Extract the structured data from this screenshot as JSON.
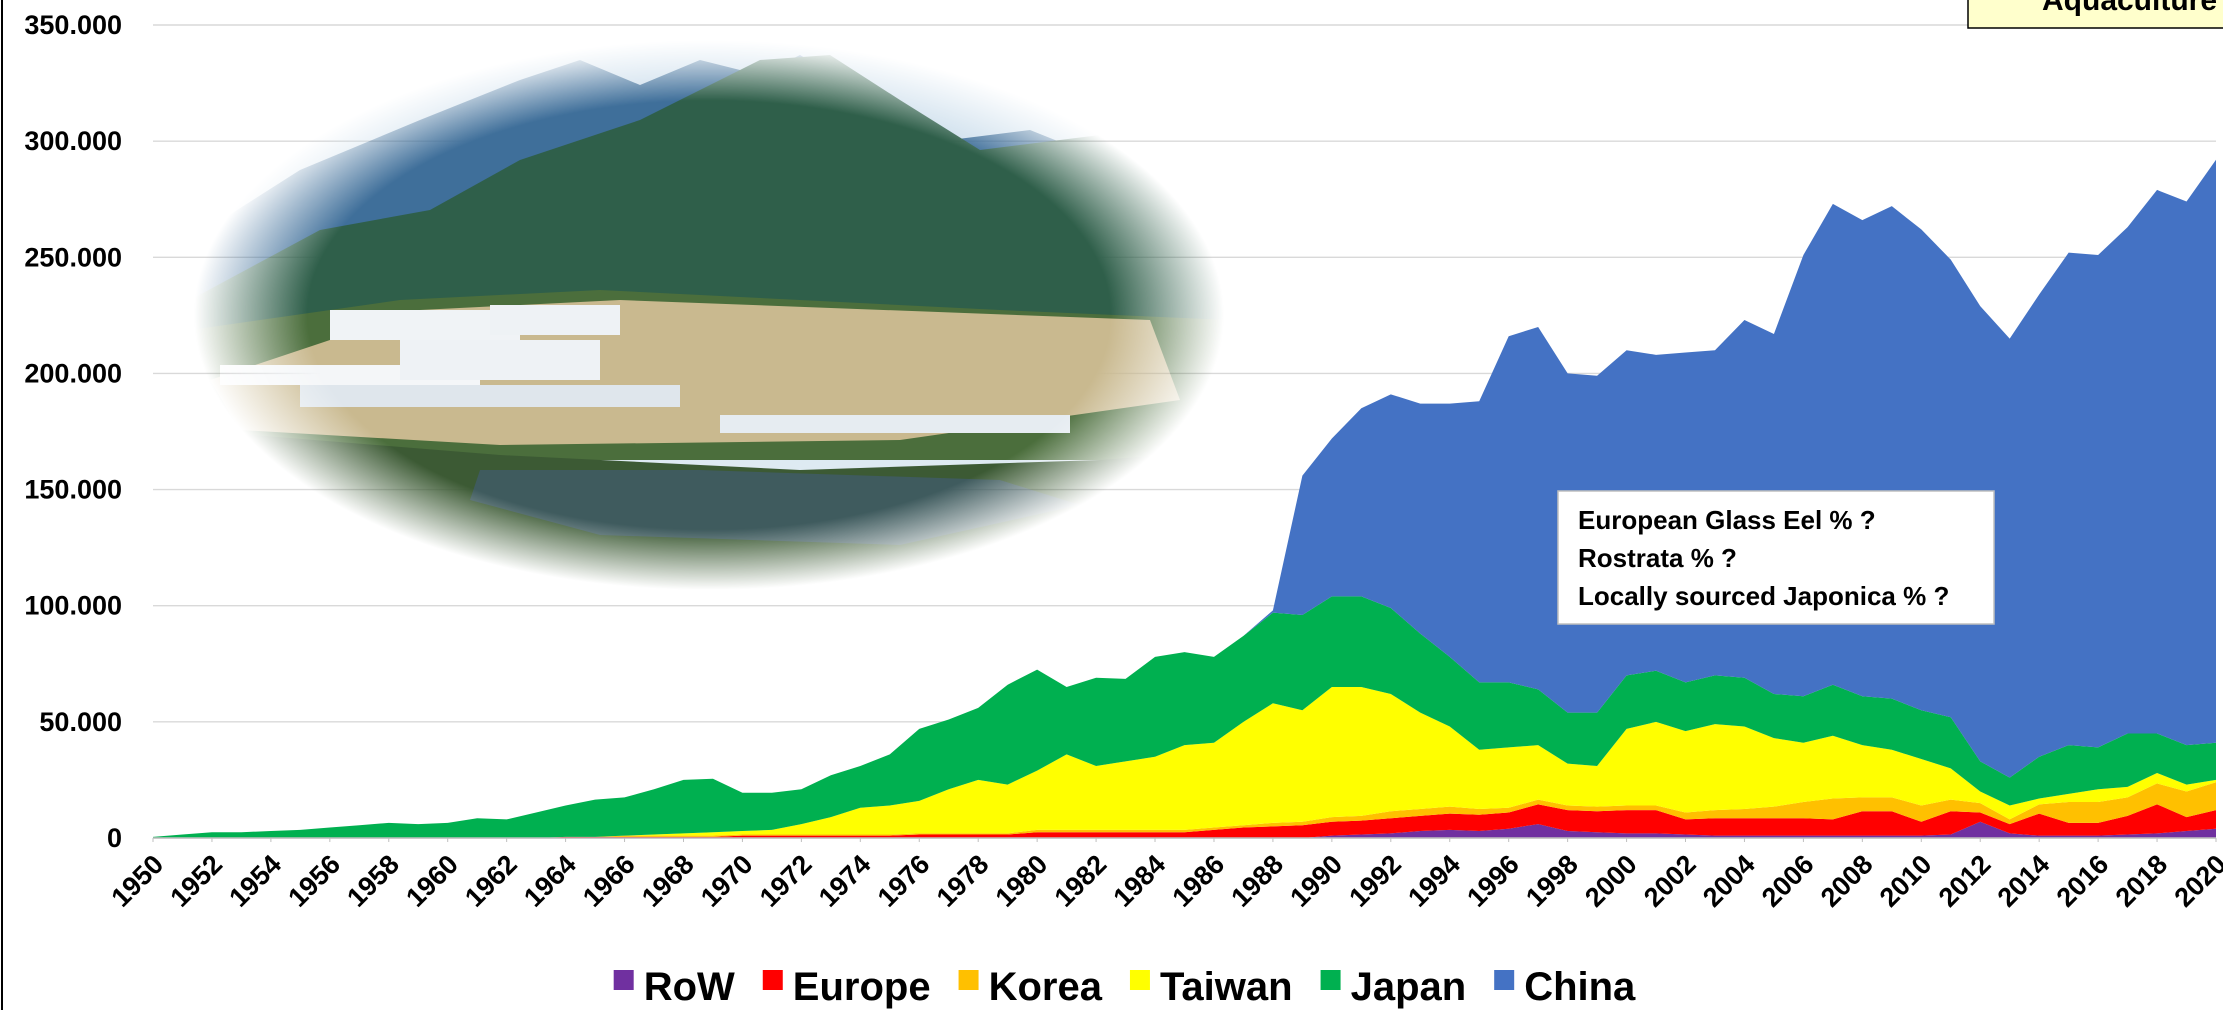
{
  "chart_data": {
    "type": "stacked-area",
    "title": "Aquaculture",
    "annotations": [
      "European Glass Eel % ?",
      "Rostrata % ?",
      "Locally sourced Japonica % ?"
    ],
    "x": [
      1950,
      1951,
      1952,
      1953,
      1954,
      1955,
      1956,
      1957,
      1958,
      1959,
      1960,
      1961,
      1962,
      1963,
      1964,
      1965,
      1966,
      1967,
      1968,
      1969,
      1970,
      1971,
      1972,
      1973,
      1974,
      1975,
      1976,
      1977,
      1978,
      1979,
      1980,
      1981,
      1982,
      1983,
      1984,
      1985,
      1986,
      1987,
      1988,
      1989,
      1990,
      1991,
      1992,
      1993,
      1994,
      1995,
      1996,
      1997,
      1998,
      1999,
      2000,
      2001,
      2002,
      2003,
      2004,
      2005,
      2006,
      2007,
      2008,
      2009,
      2010,
      2011,
      2012,
      2013,
      2014,
      2015,
      2016,
      2017,
      2018,
      2019,
      2020
    ],
    "xlim": [
      1950,
      2020
    ],
    "xticks": [
      1950,
      1952,
      1954,
      1956,
      1958,
      1960,
      1962,
      1964,
      1966,
      1968,
      1970,
      1972,
      1974,
      1976,
      1978,
      1980,
      1982,
      1984,
      1986,
      1988,
      1990,
      1992,
      1994,
      1996,
      1998,
      2000,
      2002,
      2004,
      2006,
      2008,
      2010,
      2012,
      2014,
      2016,
      2018,
      2020
    ],
    "ylim": [
      0,
      350000
    ],
    "yticks": [
      0,
      {
        "value": 50000,
        "label": "50.000"
      },
      {
        "value": 100000,
        "label": "100.000"
      },
      {
        "value": 150000,
        "label": "150.000"
      },
      {
        "value": 200000,
        "label": "200.000"
      },
      {
        "value": 250000,
        "label": "250.000"
      },
      {
        "value": 300000,
        "label": "300.000"
      },
      {
        "value": 350000,
        "label": "350.000"
      }
    ],
    "grid": true,
    "legend": "bottom",
    "series": [
      {
        "name": "RoW",
        "color": "#7030a0",
        "values": [
          0,
          0,
          0,
          0,
          0,
          0,
          0,
          0,
          0,
          0,
          0,
          0,
          0,
          0,
          0,
          0,
          0,
          0,
          0,
          0,
          0,
          0,
          0,
          0,
          0,
          0,
          0,
          0,
          0,
          0,
          0,
          0,
          0,
          0,
          0,
          0,
          0,
          0,
          0,
          0,
          1000,
          1500,
          2000,
          3000,
          3500,
          3000,
          4000,
          6000,
          3000,
          2500,
          2000,
          2000,
          1500,
          1000,
          1000,
          1000,
          1000,
          1000,
          1000,
          1000,
          1000,
          1500,
          7000,
          2000,
          1000,
          1000,
          1000,
          1500,
          2000,
          3000,
          4000
        ]
      },
      {
        "name": "Europe",
        "color": "#ff0000",
        "values": [
          0,
          0,
          0,
          0,
          0,
          0,
          0,
          0,
          0,
          0,
          0,
          0,
          0,
          0,
          500,
          500,
          500,
          500,
          500,
          500,
          1000,
          1000,
          1000,
          1000,
          1000,
          1000,
          1500,
          1500,
          1500,
          1500,
          2500,
          2500,
          2500,
          2500,
          2500,
          2500,
          3500,
          4500,
          5000,
          5500,
          6000,
          6000,
          6500,
          6500,
          7000,
          7000,
          7000,
          8500,
          9000,
          9000,
          10000,
          10000,
          6500,
          7500,
          7500,
          7500,
          7500,
          7000,
          10500,
          10500,
          6000,
          10000,
          4000,
          4000,
          9500,
          5500,
          5500,
          8000,
          12500,
          6000,
          8000
        ]
      },
      {
        "name": "Korea",
        "color": "#ffc000",
        "values": [
          0,
          0,
          0,
          0,
          0,
          0,
          0,
          0,
          0,
          0,
          0,
          0,
          0,
          0,
          0,
          0,
          500,
          500,
          500,
          500,
          500,
          500,
          500,
          500,
          500,
          500,
          500,
          500,
          500,
          500,
          1000,
          1000,
          1000,
          1000,
          1000,
          1000,
          1000,
          1000,
          1500,
          1500,
          2000,
          2000,
          3000,
          3000,
          3000,
          2500,
          2000,
          2000,
          2000,
          2000,
          2000,
          2000,
          3000,
          3500,
          4000,
          5000,
          7000,
          9000,
          6000,
          6000,
          7000,
          5000,
          4000,
          2000,
          4000,
          9000,
          9000,
          8000,
          9000,
          11000,
          12000
        ]
      },
      {
        "name": "Taiwan",
        "color": "#ffff00",
        "values": [
          0,
          0,
          0,
          0,
          0,
          0,
          0,
          0,
          0,
          0,
          0,
          0,
          0,
          0,
          0,
          0,
          0,
          500,
          1000,
          1500,
          1500,
          2000,
          4500,
          7500,
          11500,
          12500,
          14000,
          19000,
          23000,
          21000,
          25500,
          32500,
          27500,
          29500,
          31500,
          36500,
          36500,
          44500,
          51500,
          48000,
          56000,
          55500,
          50500,
          41500,
          34500,
          25500,
          26000,
          23500,
          18000,
          17500,
          33000,
          36000,
          35000,
          37000,
          35500,
          29500,
          25500,
          27000,
          22500,
          20500,
          20000,
          13500,
          5000,
          6000,
          2500,
          3500,
          5500,
          4500,
          4500,
          3000,
          1000
        ]
      },
      {
        "name": "Japan",
        "color": "#00b050",
        "values": [
          500,
          1500,
          2500,
          2500,
          3000,
          3500,
          4500,
          5500,
          6500,
          6000,
          6500,
          8500,
          8000,
          11000,
          13500,
          16000,
          16500,
          19500,
          23000,
          23000,
          16500,
          16000,
          15000,
          18000,
          18000,
          22000,
          31000,
          30000,
          31000,
          43000,
          43500,
          29000,
          38000,
          35500,
          43000,
          40000,
          37000,
          37000,
          39000,
          41000,
          39000,
          39000,
          37000,
          34000,
          30000,
          29000,
          28000,
          24000,
          22000,
          23000,
          23000,
          22000,
          21000,
          21000,
          21000,
          19000,
          20000,
          22000,
          21000,
          22000,
          21000,
          22000,
          13000,
          12000,
          18000,
          21000,
          18000,
          23000,
          17000,
          17000,
          16000
        ]
      },
      {
        "name": "China",
        "color": "#4472c4",
        "values": [
          0,
          0,
          0,
          0,
          0,
          0,
          0,
          0,
          0,
          0,
          0,
          0,
          0,
          0,
          0,
          0,
          0,
          0,
          0,
          0,
          0,
          0,
          0,
          0,
          0,
          0,
          0,
          0,
          0,
          0,
          0,
          0,
          0,
          0,
          0,
          0,
          0,
          0,
          1000,
          60000,
          68000,
          81000,
          92000,
          99000,
          109000,
          121000,
          149000,
          156000,
          146000,
          145000,
          140000,
          136000,
          142000,
          140000,
          154000,
          155000,
          190000,
          207000,
          205000,
          212000,
          207000,
          197000,
          196000,
          189000,
          199000,
          212000,
          212000,
          218000,
          234000,
          234000,
          251000
        ]
      }
    ]
  }
}
